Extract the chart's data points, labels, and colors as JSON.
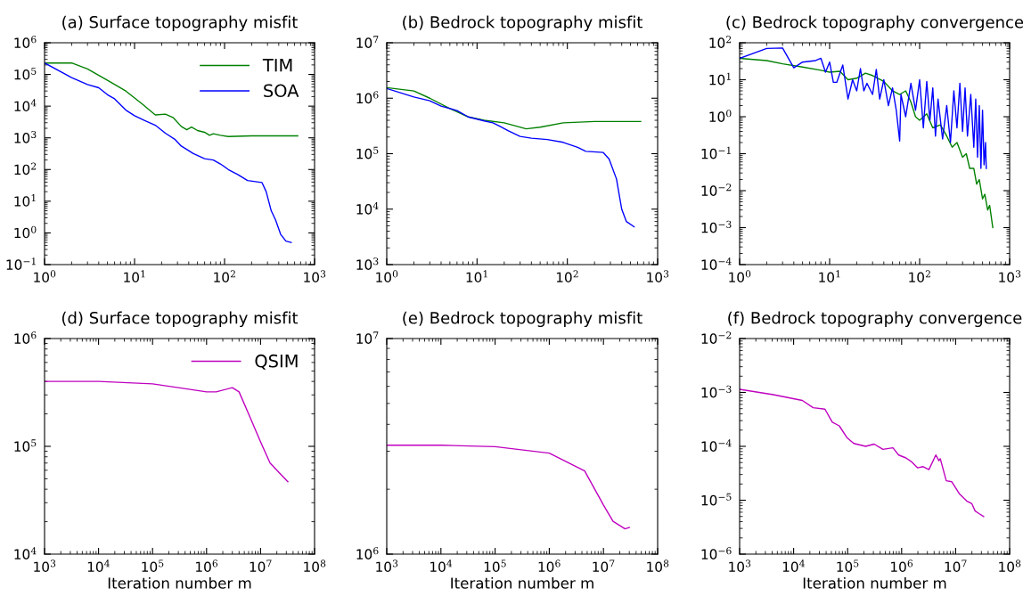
{
  "chart_data": [
    {
      "type": "line",
      "title": "(a) Surface topography misfit",
      "log": "xy",
      "legend": "top right",
      "xlim": [
        1,
        1000
      ],
      "ylim": [
        0.1,
        1000000
      ],
      "xticks": [
        {
          "value": 1,
          "label": "10$^{0}$"
        },
        {
          "value": 10,
          "label": "10$^{1}$"
        },
        {
          "value": 100,
          "label": "10$^{2}$"
        },
        {
          "value": 1000,
          "label": "10$^{3}$"
        }
      ],
      "yticks": [
        {
          "value": 0.1,
          "label": "10$^{−1}$"
        },
        {
          "value": 1,
          "label": "10$^{0}$"
        },
        {
          "value": 10,
          "label": "10$^{1}$"
        },
        {
          "value": 100,
          "label": "10$^{2}$"
        },
        {
          "value": 1000,
          "label": "10$^{3}$"
        },
        {
          "value": 10000,
          "label": "10$^{4}$"
        },
        {
          "value": 100000,
          "label": "10$^{5}$"
        },
        {
          "value": 1000000,
          "label": "10$^{6}$"
        }
      ],
      "series": [
        {
          "name": "TIM",
          "color": "#008000",
          "x": [
            1,
            2,
            3,
            5,
            8,
            12,
            17,
            22,
            27,
            33,
            38,
            43,
            50,
            60,
            68,
            75,
            90,
            110,
            200,
            650
          ],
          "values": [
            230000,
            230000,
            150000,
            65000,
            30000,
            12000,
            5300,
            5600,
            4300,
            2300,
            1800,
            2200,
            1700,
            1500,
            1200,
            1350,
            1200,
            1100,
            1150,
            1150
          ]
        },
        {
          "name": "SOA",
          "color": "#0000ff",
          "x": [
            1,
            2,
            3,
            4,
            5,
            6,
            8,
            10,
            13,
            17,
            22,
            28,
            33,
            45,
            60,
            75,
            90,
            110,
            140,
            180,
            260,
            290,
            330,
            370,
            420,
            450,
            480,
            550
          ],
          "values": [
            230000,
            80000,
            48000,
            38000,
            23000,
            17000,
            7500,
            5000,
            3500,
            2500,
            1400,
            900,
            550,
            320,
            220,
            200,
            150,
            100,
            70,
            45,
            39,
            20,
            5,
            2.5,
            0.9,
            0.7,
            0.55,
            0.5
          ]
        }
      ]
    },
    {
      "type": "line",
      "title": "(b) Bedrock topography misfit",
      "log": "xy",
      "xlim": [
        1,
        1000
      ],
      "ylim": [
        1000,
        10000000
      ],
      "xticks": [
        {
          "value": 1,
          "label": "10$^{0}$"
        },
        {
          "value": 10,
          "label": "10$^{1}$"
        },
        {
          "value": 100,
          "label": "10$^{2}$"
        },
        {
          "value": 1000,
          "label": "10$^{3}$"
        }
      ],
      "yticks": [
        {
          "value": 1000,
          "label": "10$^{3}$"
        },
        {
          "value": 10000,
          "label": "10$^{4}$"
        },
        {
          "value": 100000,
          "label": "10$^{5}$"
        },
        {
          "value": 1000000,
          "label": "10$^{6}$"
        },
        {
          "value": 10000000,
          "label": "10$^{7}$"
        }
      ],
      "series": [
        {
          "color": "#008000",
          "x": [
            1,
            2,
            3,
            5,
            8,
            12,
            20,
            35,
            50,
            90,
            200,
            650
          ],
          "values": [
            1550000,
            1350000,
            1000000,
            650000,
            460000,
            400000,
            360000,
            280000,
            300000,
            360000,
            380000,
            380000
          ]
        },
        {
          "color": "#0000ff",
          "x": [
            1,
            2,
            3,
            4,
            6,
            8,
            12,
            15,
            18,
            22,
            30,
            40,
            60,
            90,
            130,
            160,
            250,
            290,
            350,
            400,
            450,
            550
          ],
          "values": [
            1500000,
            1050000,
            900000,
            720000,
            600000,
            460000,
            390000,
            360000,
            310000,
            260000,
            205000,
            190000,
            180000,
            160000,
            130000,
            110000,
            105000,
            80000,
            35000,
            10000,
            6000,
            4800
          ]
        }
      ]
    },
    {
      "type": "line",
      "title": "(c) Bedrock topography convergence",
      "log": "xy",
      "xlim": [
        1,
        1000
      ],
      "ylim": [
        0.0001,
        100
      ],
      "xticks": [
        {
          "value": 1,
          "label": "10$^{0}$"
        },
        {
          "value": 10,
          "label": "10$^{1}$"
        },
        {
          "value": 100,
          "label": "10$^{2}$"
        },
        {
          "value": 1000,
          "label": "10$^{3}$"
        }
      ],
      "yticks": [
        {
          "value": 0.0001,
          "label": "10$^{−4}$"
        },
        {
          "value": 0.001,
          "label": "10$^{−3}$"
        },
        {
          "value": 0.01,
          "label": "10$^{−2}$"
        },
        {
          "value": 0.1,
          "label": "10$^{−1}$"
        },
        {
          "value": 1,
          "label": "10$^{0}$"
        },
        {
          "value": 10,
          "label": "10$^{1}$"
        },
        {
          "value": 100,
          "label": "10$^{2}$"
        }
      ],
      "series": [
        {
          "color": "#008000",
          "x": [
            1,
            2,
            3,
            5,
            8,
            10,
            13,
            16,
            20,
            25,
            30,
            40,
            50,
            60,
            70,
            80,
            90,
            100,
            120,
            140,
            170,
            200,
            230,
            260,
            300,
            330,
            360,
            400,
            430,
            460,
            500,
            530,
            570,
            600,
            650
          ],
          "values": [
            38,
            33,
            27,
            22,
            18,
            16,
            17,
            10,
            11,
            15,
            13,
            9,
            5,
            4,
            5,
            2.5,
            1,
            0.8,
            1.2,
            0.5,
            0.6,
            0.3,
            0.15,
            0.2,
            0.08,
            0.1,
            0.04,
            0.04,
            0.015,
            0.02,
            0.006,
            0.008,
            0.003,
            0.004,
            0.001
          ]
        },
        {
          "color": "#0000ff",
          "x": [
            1,
            2,
            3,
            4,
            5,
            7,
            8,
            9,
            10,
            11,
            12,
            14,
            16,
            18,
            20,
            22,
            24,
            26,
            30,
            33,
            36,
            40,
            45,
            50,
            55,
            60,
            62,
            70,
            80,
            90,
            100,
            110,
            120,
            130,
            140,
            150,
            160,
            180,
            200,
            220,
            240,
            260,
            280,
            300,
            320,
            340,
            370,
            400,
            420,
            440,
            460,
            480,
            500,
            520,
            540,
            550
          ],
          "values": [
            38,
            70,
            72,
            21,
            30,
            33,
            38,
            16,
            30,
            8.5,
            8.5,
            25,
            3,
            10,
            5,
            20,
            5,
            8,
            4,
            19,
            3,
            10,
            2,
            6,
            1.5,
            0.22,
            4,
            1,
            8,
            1.5,
            10,
            0.5,
            9,
            0.8,
            6,
            0.3,
            3,
            0.25,
            2,
            0.2,
            5,
            0.5,
            8,
            0.4,
            6,
            0.3,
            4,
            0.15,
            3,
            0.08,
            2,
            0.04,
            1.5,
            0.05,
            0.2,
            0.04
          ]
        }
      ]
    },
    {
      "type": "line",
      "title": "(d) Surface topography misfit",
      "xlabel": "Iteration number m",
      "log": "xy",
      "legend": "top right",
      "xlim": [
        1000,
        100000000
      ],
      "ylim": [
        10000,
        1000000
      ],
      "xticks": [
        {
          "value": 1000,
          "label": "10$^{3}$"
        },
        {
          "value": 10000,
          "label": "10$^{4}$"
        },
        {
          "value": 100000,
          "label": "10$^{5}$"
        },
        {
          "value": 1000000,
          "label": "10$^{6}$"
        },
        {
          "value": 10000000,
          "label": "10$^{7}$"
        },
        {
          "value": 100000000,
          "label": "10$^{8}$"
        }
      ],
      "yticks": [
        {
          "value": 10000,
          "label": "10$^{4}$"
        },
        {
          "value": 100000,
          "label": "10$^{5}$"
        },
        {
          "value": 1000000,
          "label": "10$^{6}$"
        }
      ],
      "series": [
        {
          "name": "QSIM",
          "color": "#bf00bf",
          "x": [
            1000,
            10000,
            100000,
            300000,
            1000000,
            1500000,
            3000000,
            4000000,
            6000000,
            10000000,
            15000000,
            20000000,
            32000000
          ],
          "values": [
            400000,
            400000,
            380000,
            350000,
            320000,
            320000,
            350000,
            320000,
            200000,
            110000,
            70000,
            60000,
            47000
          ]
        }
      ]
    },
    {
      "type": "line",
      "title": "(e) Bedrock topography misfit",
      "xlabel": "Iteration number m",
      "log": "xy",
      "xlim": [
        1000,
        100000000
      ],
      "ylim": [
        1000000,
        10000000
      ],
      "xticks": [
        {
          "value": 1000,
          "label": "10$^{3}$"
        },
        {
          "value": 10000,
          "label": "10$^{4}$"
        },
        {
          "value": 100000,
          "label": "10$^{5}$"
        },
        {
          "value": 1000000,
          "label": "10$^{6}$"
        },
        {
          "value": 10000000,
          "label": "10$^{7}$"
        },
        {
          "value": 100000000,
          "label": "10$^{8}$"
        }
      ],
      "yticks": [
        {
          "value": 1000000,
          "label": "10$^{6}$"
        },
        {
          "value": 10000000,
          "label": "10$^{7}$"
        }
      ],
      "series": [
        {
          "color": "#bf00bf",
          "x": [
            1000,
            10000,
            100000,
            1000000,
            4500000,
            10000000,
            15000000,
            25000000,
            30000000
          ],
          "values": [
            3200000,
            3200000,
            3150000,
            2940000,
            2430000,
            1690000,
            1420000,
            1310000,
            1330000
          ]
        }
      ]
    },
    {
      "type": "line",
      "title": "(f) Bedrock topography convergence",
      "xlabel": "Iteration number m",
      "log": "xy",
      "xlim": [
        1000,
        100000000
      ],
      "ylim": [
        1e-06,
        0.01
      ],
      "xticks": [
        {
          "value": 1000,
          "label": "10$^{3}$"
        },
        {
          "value": 10000,
          "label": "10$^{4}$"
        },
        {
          "value": 100000,
          "label": "10$^{5}$"
        },
        {
          "value": 1000000,
          "label": "10$^{6}$"
        },
        {
          "value": 10000000,
          "label": "10$^{7}$"
        },
        {
          "value": 100000000,
          "label": "10$^{8}$"
        }
      ],
      "yticks": [
        {
          "value": 1e-06,
          "label": "10$^{−6}$"
        },
        {
          "value": 1e-05,
          "label": "10$^{−5}$"
        },
        {
          "value": 0.0001,
          "label": "10$^{−4}$"
        },
        {
          "value": 0.001,
          "label": "10$^{−3}$"
        },
        {
          "value": 0.01,
          "label": "10$^{−2}$"
        }
      ],
      "series": [
        {
          "color": "#bf00bf",
          "x": [
            1000,
            4200,
            14500,
            23000,
            38000,
            52000,
            70000,
            97000,
            130000,
            215000,
            310000,
            450000,
            690000,
            880000,
            1200000,
            1550000,
            1960000,
            2500000,
            3200000,
            4300000,
            4900000,
            5200000,
            6700000,
            8500000,
            11700000,
            16000000,
            20000000,
            23000000,
            27500000,
            33000000
          ],
          "values": [
            0.00114,
            0.00091,
            0.00071,
            0.00052,
            0.00049,
            0.00028,
            0.00024,
            0.000145,
            0.000113,
            0.0001,
            0.00011,
            8.8e-05,
            9.4e-05,
            6.9e-05,
            6.1e-05,
            5.1e-05,
            4e-05,
            4.2e-05,
            3.7e-05,
            6.9e-05,
            5.4e-05,
            5.9e-05,
            2.3e-05,
            2.2e-05,
            1.32e-05,
            9.7e-06,
            8.6e-06,
            6.3e-06,
            5.6e-06,
            5e-06
          ]
        }
      ]
    }
  ]
}
